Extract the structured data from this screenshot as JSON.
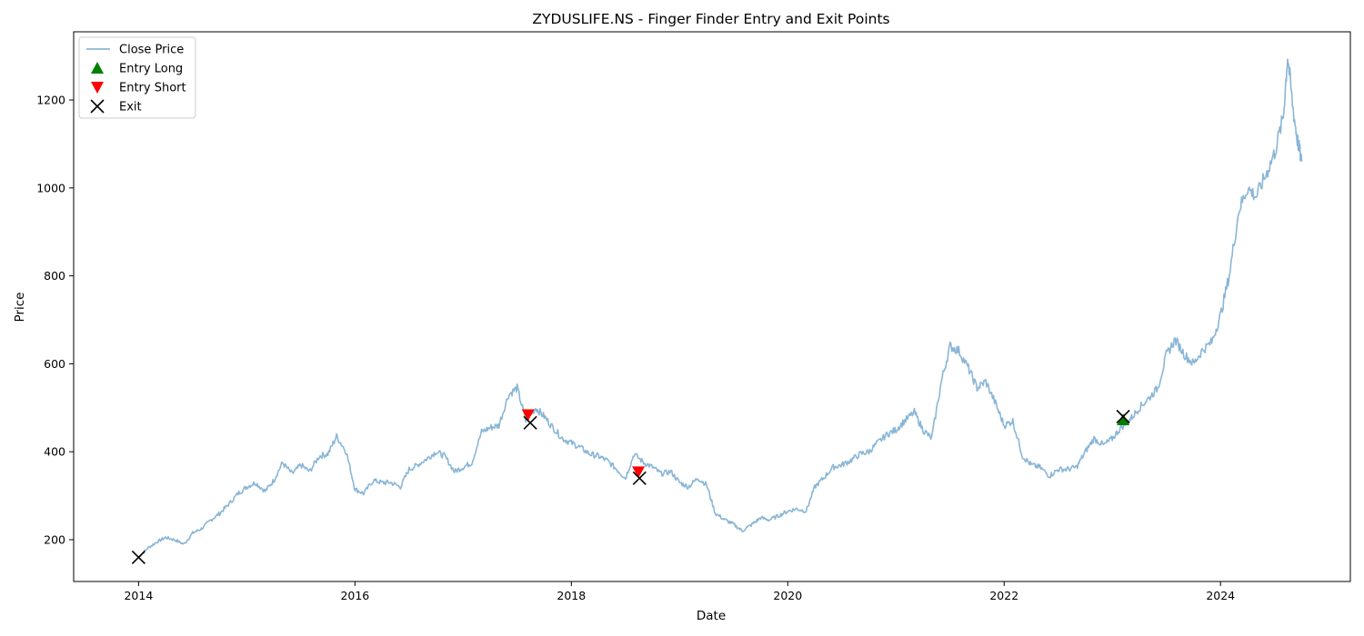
{
  "chart_data": {
    "type": "line",
    "title": "ZYDUSLIFE.NS - Finger Finder Entry and Exit Points",
    "xlabel": "Date",
    "ylabel": "Price",
    "xlim": [
      2013.4,
      2025.2
    ],
    "ylim": [
      105,
      1355
    ],
    "xticks": [
      2014,
      2016,
      2018,
      2020,
      2022,
      2024
    ],
    "yticks": [
      200,
      400,
      600,
      800,
      1000,
      1200
    ],
    "grid": false,
    "legend": {
      "placement": "top-left",
      "entries": [
        {
          "label": "Close Price",
          "marker": "line",
          "color": "#8ab6d6"
        },
        {
          "label": "Entry Long",
          "marker": "triangle-up",
          "color": "#008000"
        },
        {
          "label": "Entry Short",
          "marker": "triangle-down",
          "color": "#ff0000"
        },
        {
          "label": "Exit",
          "marker": "x",
          "color": "#000000"
        }
      ]
    },
    "series": [
      {
        "name": "Close Price",
        "color": "#8ab6d6",
        "x": [
          2014.0,
          2014.08,
          2014.17,
          2014.25,
          2014.33,
          2014.42,
          2014.5,
          2014.58,
          2014.67,
          2014.75,
          2014.83,
          2014.92,
          2015.0,
          2015.08,
          2015.17,
          2015.25,
          2015.33,
          2015.42,
          2015.5,
          2015.58,
          2015.67,
          2015.75,
          2015.83,
          2015.92,
          2016.0,
          2016.08,
          2016.17,
          2016.25,
          2016.33,
          2016.42,
          2016.5,
          2016.58,
          2016.67,
          2016.75,
          2016.83,
          2016.92,
          2017.0,
          2017.08,
          2017.17,
          2017.25,
          2017.33,
          2017.42,
          2017.5,
          2017.58,
          2017.67,
          2017.75,
          2017.83,
          2017.92,
          2018.0,
          2018.08,
          2018.17,
          2018.25,
          2018.33,
          2018.42,
          2018.5,
          2018.58,
          2018.67,
          2018.75,
          2018.83,
          2018.92,
          2019.0,
          2019.08,
          2019.17,
          2019.25,
          2019.33,
          2019.42,
          2019.5,
          2019.58,
          2019.67,
          2019.75,
          2019.83,
          2019.92,
          2020.0,
          2020.08,
          2020.17,
          2020.25,
          2020.33,
          2020.42,
          2020.5,
          2020.58,
          2020.67,
          2020.75,
          2020.83,
          2020.92,
          2021.0,
          2021.08,
          2021.17,
          2021.25,
          2021.33,
          2021.42,
          2021.5,
          2021.58,
          2021.67,
          2021.75,
          2021.83,
          2021.92,
          2022.0,
          2022.08,
          2022.17,
          2022.25,
          2022.33,
          2022.42,
          2022.5,
          2022.58,
          2022.67,
          2022.75,
          2022.83,
          2022.92,
          2023.0,
          2023.08,
          2023.17,
          2023.25,
          2023.33,
          2023.42,
          2023.5,
          2023.58,
          2023.67,
          2023.75,
          2023.83,
          2023.92,
          2024.0,
          2024.08,
          2024.17,
          2024.25,
          2024.33,
          2024.42,
          2024.5,
          2024.58,
          2024.62,
          2024.67,
          2024.71,
          2024.75
        ],
        "y": [
          160,
          180,
          195,
          205,
          200,
          190,
          215,
          225,
          245,
          260,
          280,
          305,
          320,
          330,
          310,
          335,
          375,
          350,
          370,
          355,
          390,
          395,
          435,
          400,
          315,
          305,
          335,
          330,
          330,
          320,
          360,
          370,
          385,
          400,
          390,
          355,
          365,
          375,
          445,
          455,
          460,
          530,
          545,
          470,
          500,
          480,
          455,
          430,
          420,
          410,
          395,
          390,
          380,
          360,
          340,
          395,
          375,
          365,
          350,
          355,
          330,
          320,
          340,
          325,
          260,
          245,
          235,
          220,
          235,
          250,
          245,
          255,
          265,
          270,
          265,
          320,
          340,
          365,
          370,
          380,
          395,
          400,
          420,
          440,
          450,
          470,
          490,
          450,
          430,
          560,
          640,
          630,
          590,
          545,
          560,
          510,
          460,
          470,
          390,
          370,
          365,
          345,
          360,
          360,
          365,
          400,
          430,
          415,
          430,
          455,
          475,
          500,
          520,
          545,
          620,
          655,
          620,
          600,
          630,
          650,
          710,
          800,
          950,
          1000,
          980,
          1030,
          1080,
          1160,
          1300,
          1180,
          1110,
          1060
        ]
      }
    ],
    "markers": {
      "entry_long": [
        {
          "x": 2023.1,
          "y": 472
        }
      ],
      "entry_short": [
        {
          "x": 2017.6,
          "y": 485
        },
        {
          "x": 2018.62,
          "y": 355
        }
      ],
      "exit": [
        {
          "x": 2014.0,
          "y": 160
        },
        {
          "x": 2017.62,
          "y": 466
        },
        {
          "x": 2018.63,
          "y": 340
        },
        {
          "x": 2023.1,
          "y": 480
        }
      ]
    }
  }
}
